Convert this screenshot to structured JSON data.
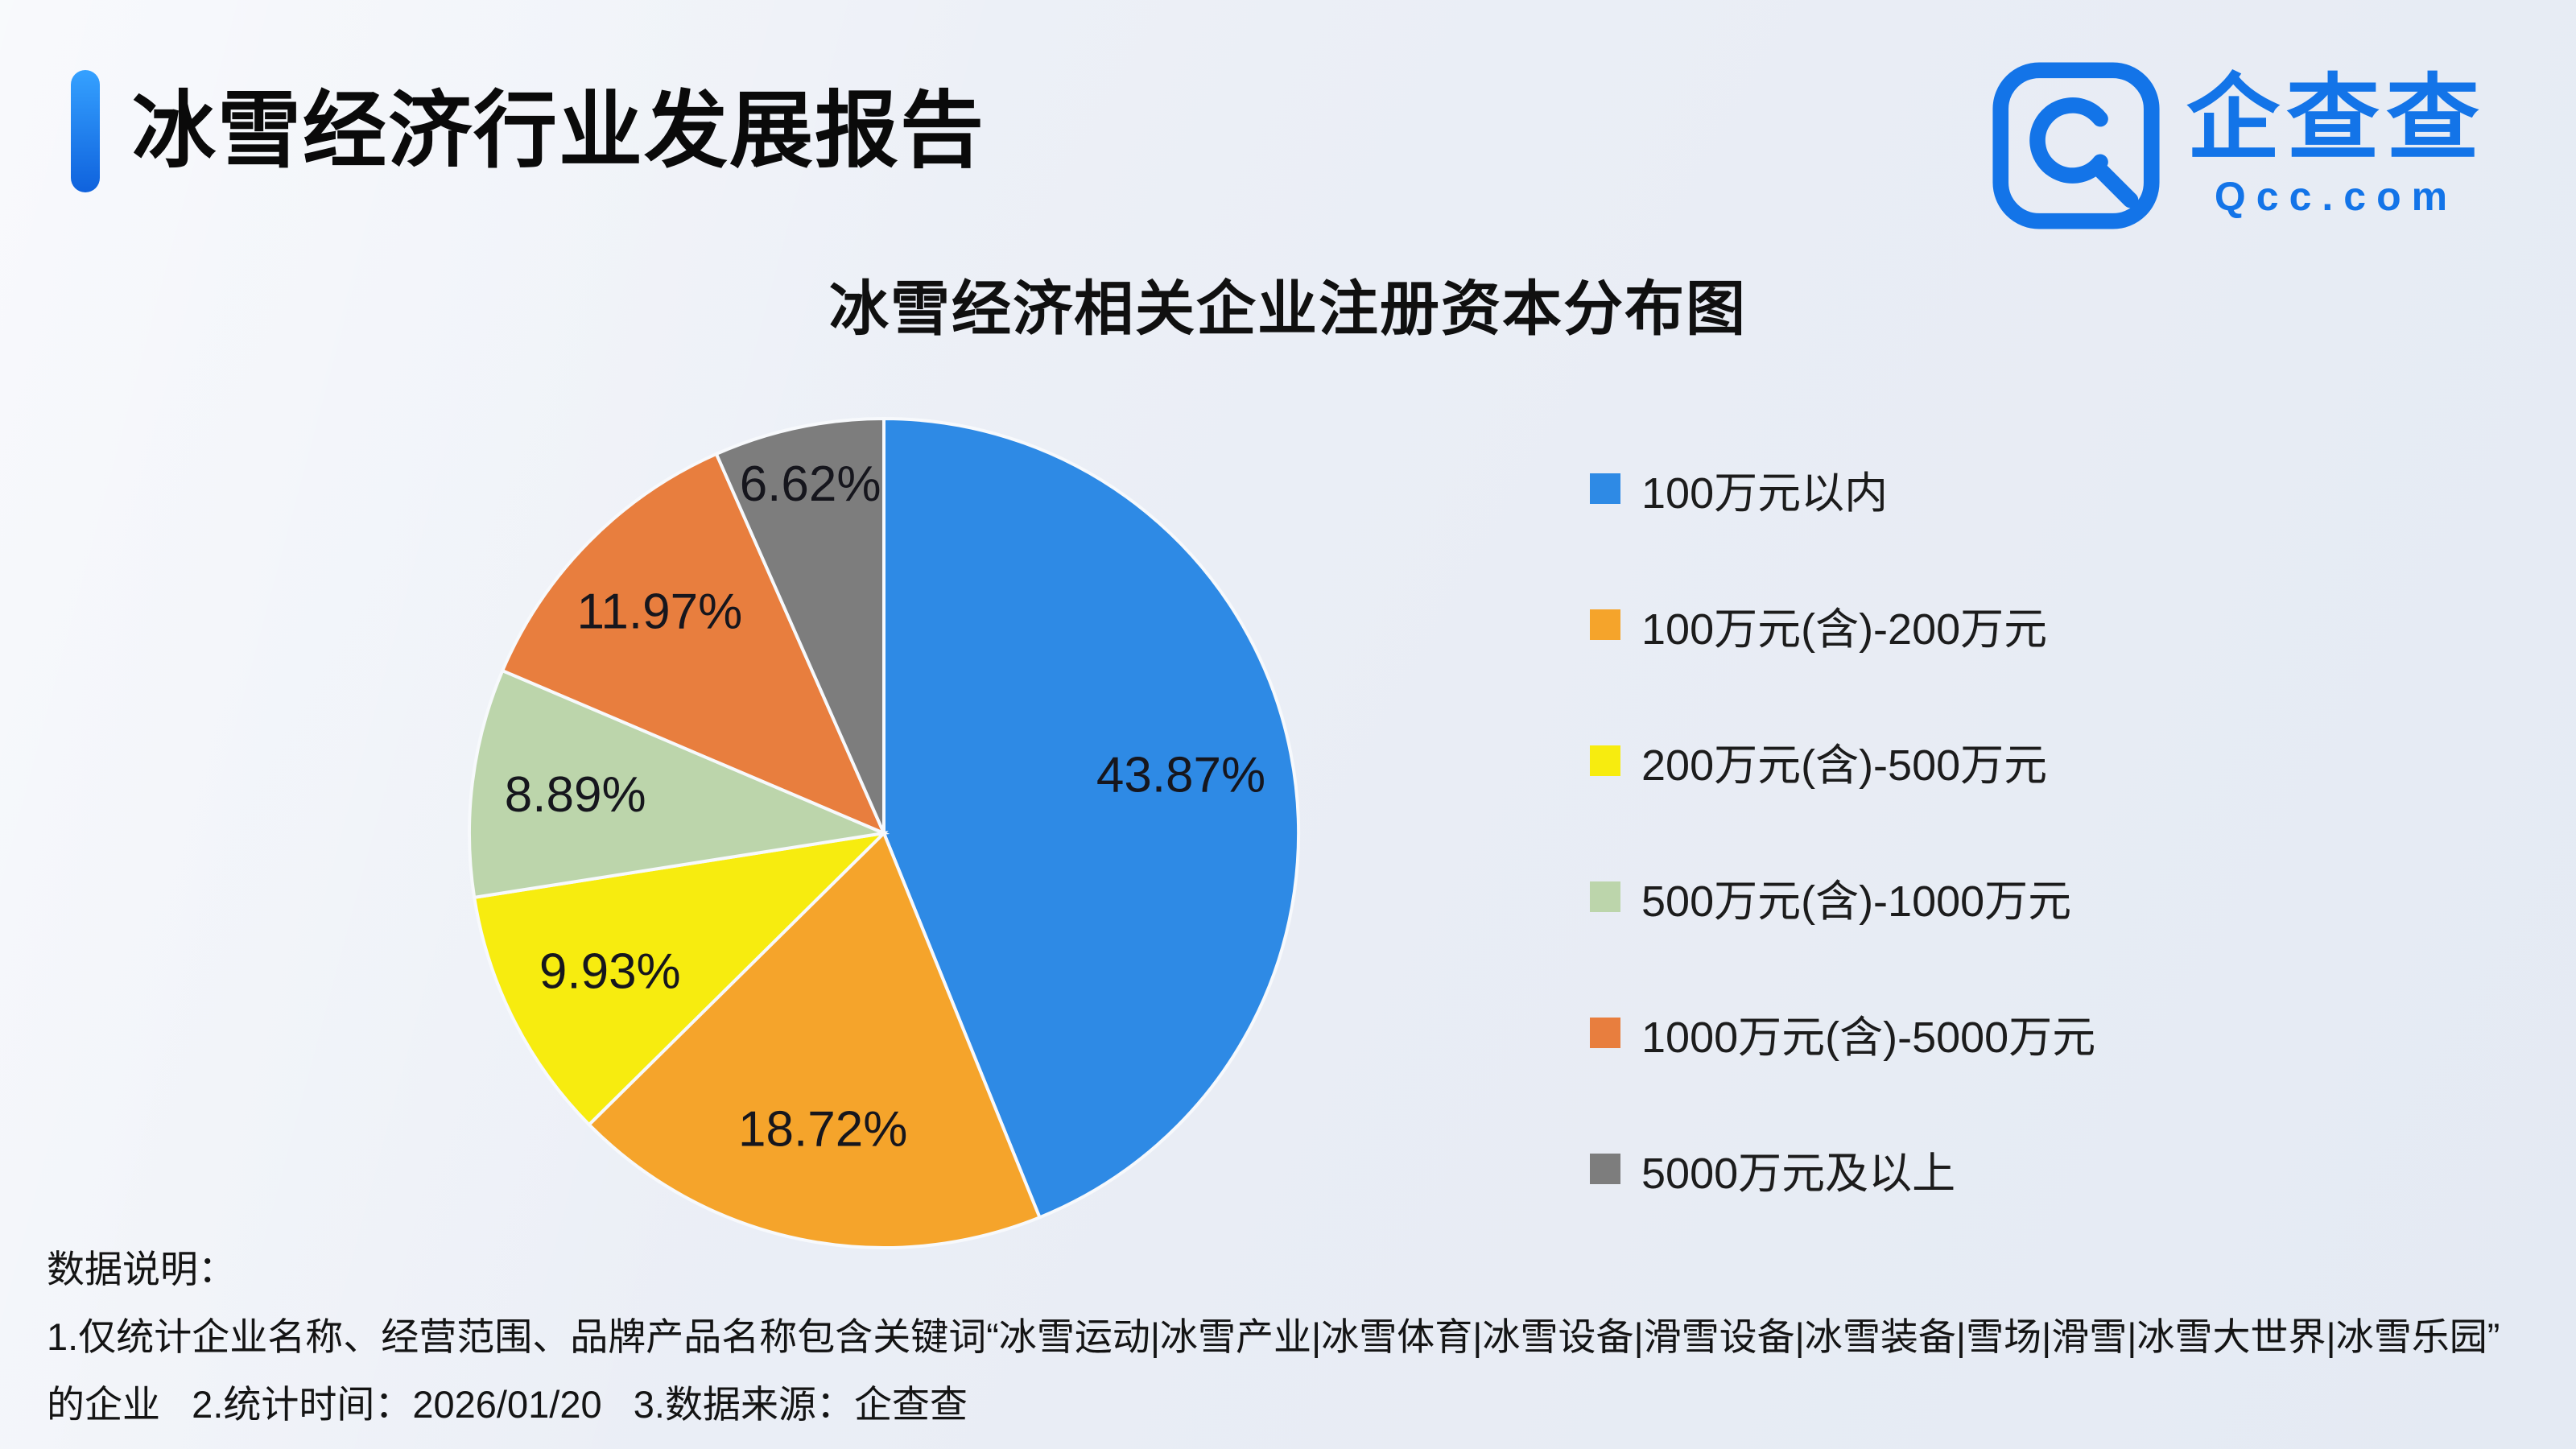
{
  "header": {
    "title": "冰雪经济行业发展报告",
    "logo": {
      "brand": "企查查",
      "domain": "Qcc.com"
    }
  },
  "chart_data": {
    "type": "pie",
    "title": "冰雪经济相关企业注册资本分布图",
    "legend_position": "right",
    "start_angle_deg": 0,
    "direction": "clockwise",
    "value_suffix": "%",
    "slices": [
      {
        "label": "100万元以内",
        "value": 43.87,
        "color": "#2E8AE5",
        "label_r": 0.73
      },
      {
        "label": "100万元(含)-200万元",
        "value": 18.72,
        "color": "#F5A42B",
        "label_r": 0.73
      },
      {
        "label": "200万元(含)-500万元",
        "value": 9.93,
        "color": "#F7EC0F",
        "label_r": 0.74
      },
      {
        "label": "500万元(含)-1000万元",
        "value": 8.89,
        "color": "#BCD5AB",
        "label_r": 0.75
      },
      {
        "label": "1000万元(含)-5000万元",
        "value": 11.97,
        "color": "#E87E3E",
        "label_r": 0.76
      },
      {
        "label": "5000万元及以上",
        "value": 6.62,
        "color": "#7D7D7D",
        "label_r": 0.86
      }
    ]
  },
  "footer": {
    "heading": "数据说明：",
    "line1": "1.仅统计企业名称、经营范围、品牌产品名称包含关键词“冰雪运动|冰雪产业|冰雪体育|冰雪设备|滑雪设备|冰雪装备|雪场|滑雪|冰雪大世界|冰雪乐园”",
    "line2": "的企业   2.统计时间：2026/01/20   3.数据来源：企查查"
  }
}
